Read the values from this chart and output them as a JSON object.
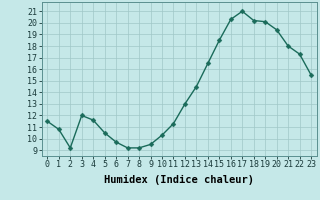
{
  "x": [
    0,
    1,
    2,
    3,
    4,
    5,
    6,
    7,
    8,
    9,
    10,
    11,
    12,
    13,
    14,
    15,
    16,
    17,
    18,
    19,
    20,
    21,
    22,
    23
  ],
  "y": [
    11.5,
    10.8,
    9.2,
    12.0,
    11.6,
    10.5,
    9.7,
    9.2,
    9.2,
    9.5,
    10.3,
    11.3,
    13.0,
    14.5,
    16.5,
    18.5,
    20.3,
    21.0,
    20.2,
    20.1,
    19.4,
    18.0,
    17.3,
    15.5
  ],
  "line_color": "#1a6b5a",
  "marker_color": "#1a6b5a",
  "bg_color": "#c5e8e8",
  "grid_color": "#a0c8c8",
  "xlabel": "Humidex (Indice chaleur)",
  "ylabel_ticks": [
    9,
    10,
    11,
    12,
    13,
    14,
    15,
    16,
    17,
    18,
    19,
    20,
    21
  ],
  "ylim": [
    8.5,
    21.8
  ],
  "xlim": [
    -0.5,
    23.5
  ],
  "tick_fontsize": 6,
  "xlabel_fontsize": 7.5,
  "linewidth": 1.0,
  "markersize": 2.5
}
